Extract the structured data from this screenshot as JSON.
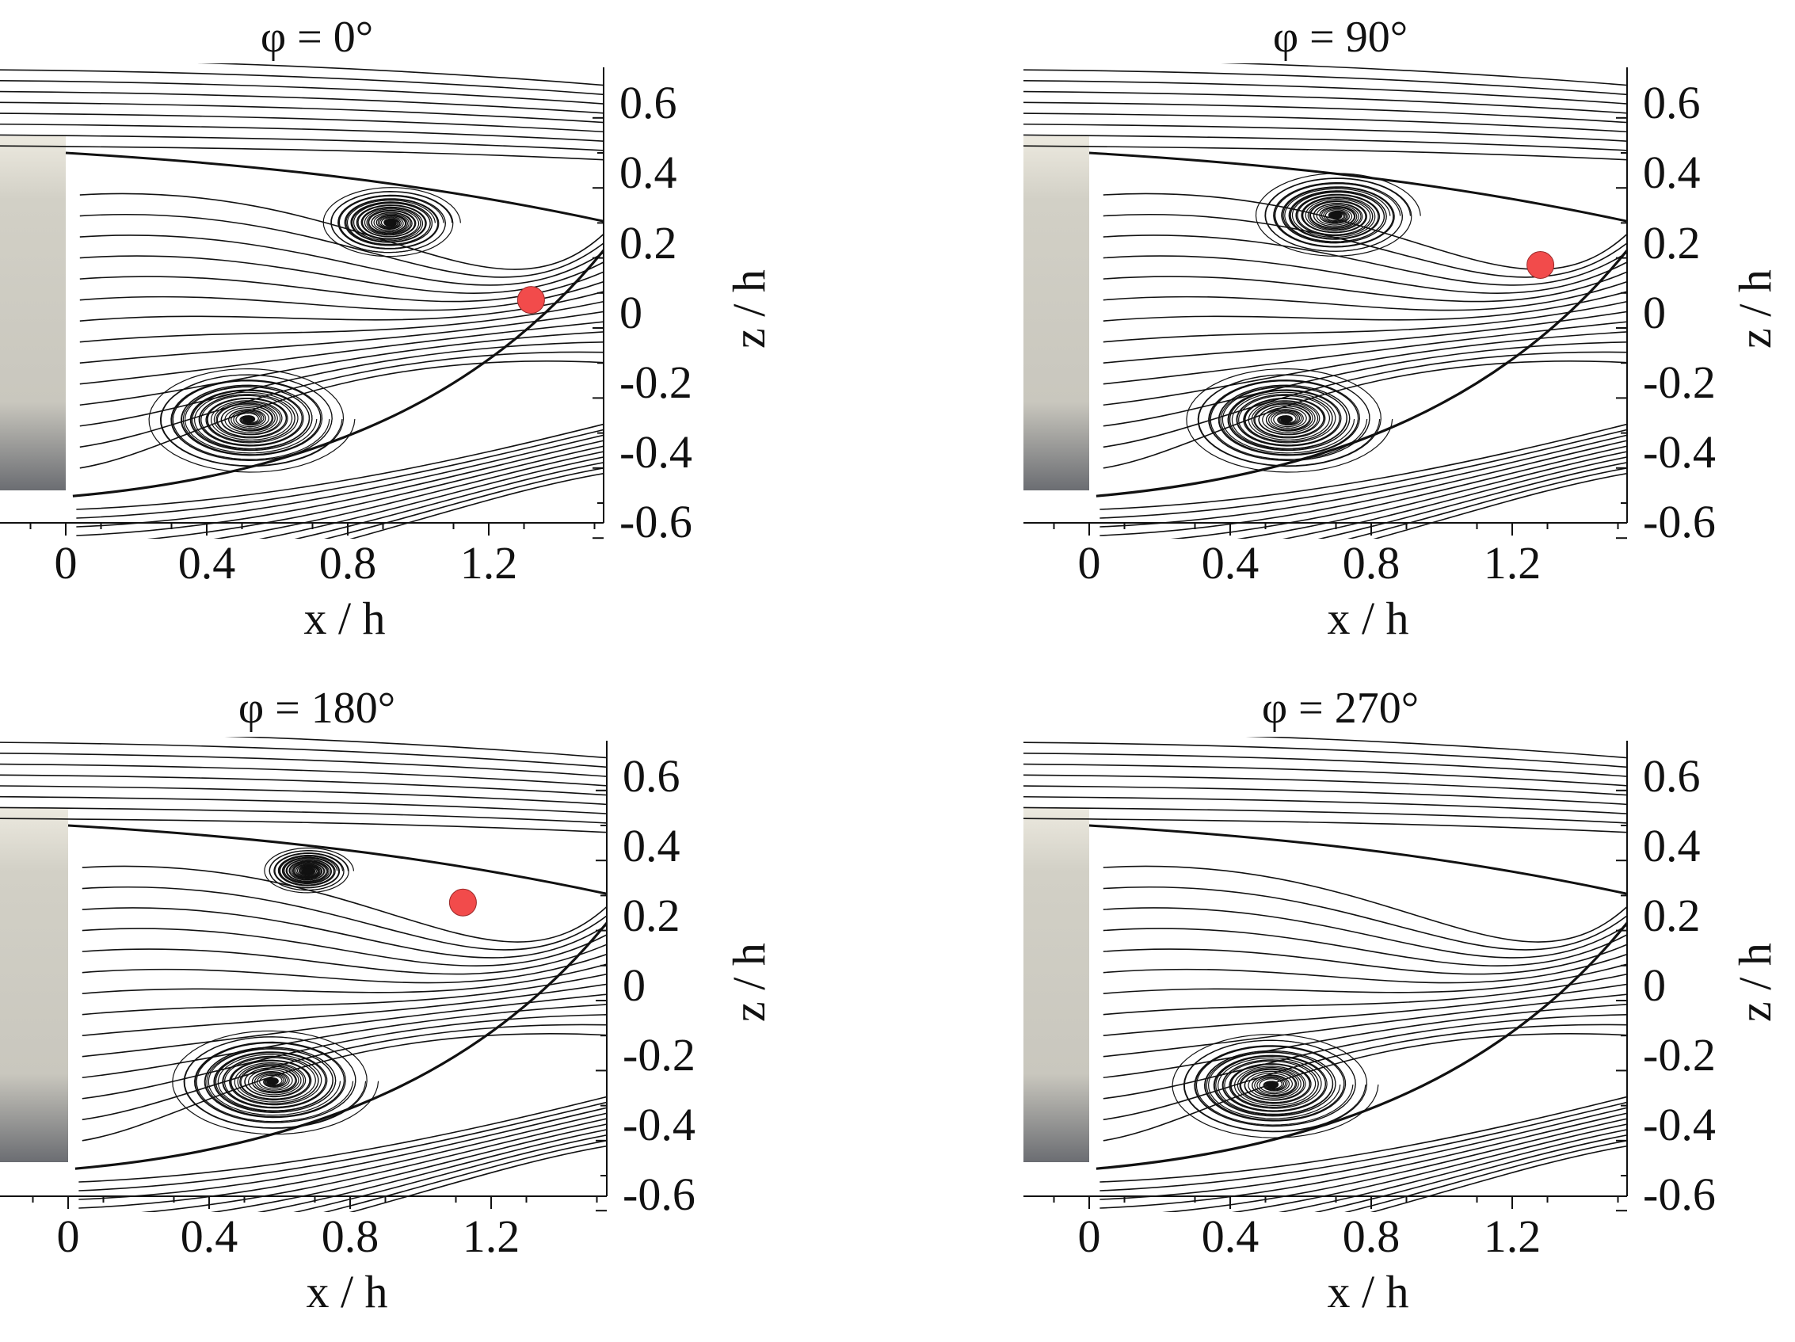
{
  "figure": {
    "panels": [
      {
        "id": "p0",
        "title": "φ = 0°",
        "saddle": {
          "x": 1.32,
          "z": 0.08
        },
        "vortices": [
          {
            "x": 0.92,
            "z": 0.3,
            "sense": -1,
            "rmax": 0.2
          },
          {
            "x": 0.52,
            "z": -0.26,
            "sense": 1,
            "rmax": 0.3
          }
        ]
      },
      {
        "id": "p90",
        "title": "φ = 90°",
        "saddle": {
          "x": 1.28,
          "z": 0.18
        },
        "vortices": [
          {
            "x": 0.7,
            "z": 0.32,
            "sense": -1,
            "rmax": 0.24
          },
          {
            "x": 0.56,
            "z": -0.26,
            "sense": 1,
            "rmax": 0.3
          }
        ]
      },
      {
        "id": "p180",
        "title": "φ = 180°",
        "saddle": {
          "x": 1.12,
          "z": 0.28
        },
        "vortices": [
          {
            "x": 0.68,
            "z": 0.37,
            "sense": -1,
            "rmax": 0.13
          },
          {
            "x": 0.58,
            "z": -0.23,
            "sense": 1,
            "rmax": 0.3
          }
        ]
      },
      {
        "id": "p270",
        "title": "φ = 270°",
        "saddle": null,
        "vortices": [
          {
            "x": 0.52,
            "z": -0.24,
            "sense": 1,
            "rmax": 0.3
          }
        ]
      }
    ],
    "x_label": "x / h",
    "z_label": "z / h",
    "x_ticks": [
      "0",
      "0.4",
      "0.8",
      "1.2"
    ],
    "x_tick_values": [
      0,
      0.4,
      0.8,
      1.2
    ],
    "z_ticks": [
      "0.6",
      "0.4",
      "0.2",
      "0",
      "-0.2",
      "-0.4",
      "-0.6"
    ],
    "z_tick_values": [
      0.6,
      0.4,
      0.2,
      0,
      -0.2,
      -0.4,
      -0.6
    ],
    "x_range": [
      -0.19,
      1.52
    ],
    "z_range": [
      -0.62,
      0.72
    ],
    "obstacle": {
      "x_from": -0.19,
      "x_to": 0,
      "z_from": -0.5,
      "z_to": 0.5
    },
    "colors": {
      "streamline": "#111111",
      "saddle_point": "#f24b4b",
      "obstacle_top": "#ece9df",
      "obstacle_mid": "#c8c6bd",
      "obstacle_bottom": "#6b6d72"
    }
  }
}
